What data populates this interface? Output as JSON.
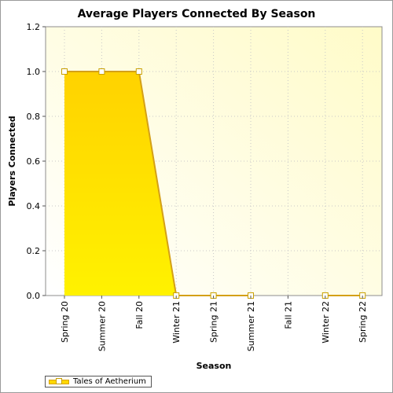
{
  "chart_data": {
    "type": "area",
    "title": "Average Players Connected By Season",
    "xlabel": "Season",
    "ylabel": "Players Connected",
    "categories": [
      "Spring 20",
      "Summer 20",
      "Fall 20",
      "Winter 21",
      "Spring 21",
      "Summer 21",
      "Fall 21",
      "Winter 22",
      "Spring 22"
    ],
    "series": [
      {
        "name": "Tales of Aetherium",
        "values": [
          1.0,
          1.0,
          1.0,
          0.0,
          0.0,
          0.0,
          null,
          0.0,
          0.0
        ]
      }
    ],
    "ylim": [
      0,
      1.2
    ],
    "yticks": [
      "0.0",
      "0.2",
      "0.4",
      "0.6",
      "0.8",
      "1.0",
      "1.2"
    ],
    "grid": true,
    "legend_position": "bottom-left",
    "colors": {
      "area_top": "#ffd200",
      "area_bottom": "#fff200",
      "line": "#d4a017",
      "plot_bg_light": "#fffef2",
      "plot_bg_dark": "#fffbc8"
    }
  }
}
